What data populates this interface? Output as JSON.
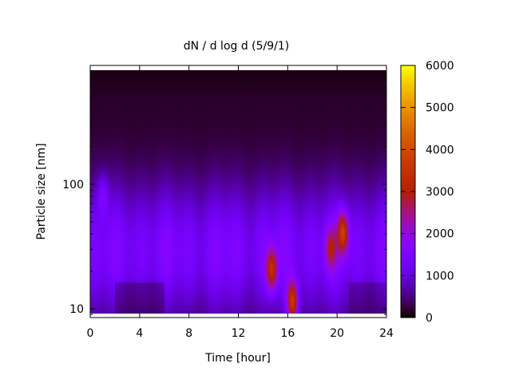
{
  "chart_data": {
    "type": "heatmap",
    "title": "dN / d log d (5/9/1)",
    "xlabel": "Time [hour]",
    "ylabel": "Particle size [nm]",
    "xlim": [
      0,
      24
    ],
    "ylim": [
      8.5,
      900
    ],
    "y_scale": "log",
    "x_ticks": [
      0,
      4,
      8,
      12,
      16,
      20,
      24
    ],
    "y_ticks": [
      10,
      100
    ],
    "colorbar": {
      "range": [
        0,
        6000
      ],
      "ticks": [
        0,
        1000,
        2000,
        3000,
        4000,
        5000,
        6000
      ],
      "palette": "black-purple-magenta-orange-yellow"
    },
    "grid": false,
    "hotspots": [
      {
        "time": 1.0,
        "size_nm": 80,
        "value": 2300
      },
      {
        "time": 14.7,
        "size_nm": 20,
        "value": 3700
      },
      {
        "time": 16.4,
        "size_nm": 11,
        "value": 4300
      },
      {
        "time": 19.5,
        "size_nm": 30,
        "value": 3000
      },
      {
        "time": 20.5,
        "size_nm": 40,
        "value": 4000
      }
    ]
  }
}
